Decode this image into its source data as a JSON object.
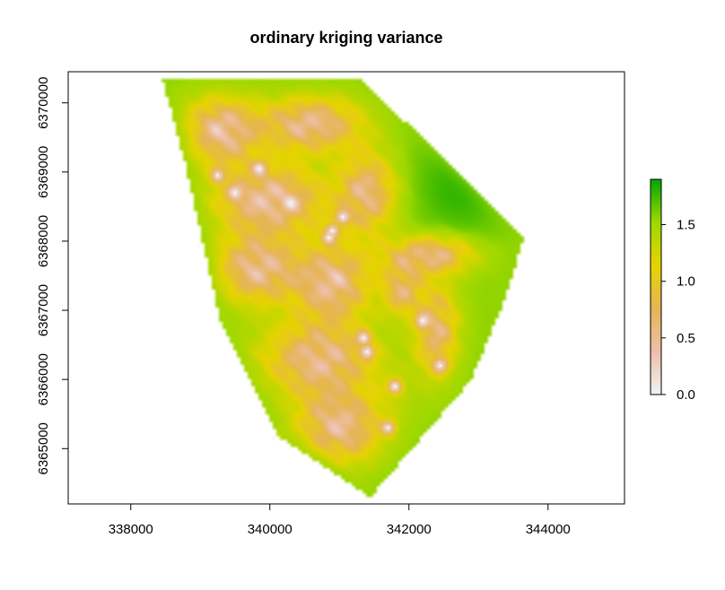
{
  "chart_data": {
    "type": "heatmap",
    "title": "ordinary kriging variance",
    "xlabel": "",
    "ylabel": "",
    "xlim": [
      337100,
      345100
    ],
    "ylim": [
      6364200,
      6370450
    ],
    "x_ticks": [
      338000,
      340000,
      342000,
      344000
    ],
    "x_tick_labels": [
      "338000",
      "340000",
      "342000",
      "344000"
    ],
    "y_ticks": [
      6365000,
      6366000,
      6367000,
      6368000,
      6369000,
      6370000
    ],
    "y_tick_labels": [
      "6365000",
      "6366000",
      "6367000",
      "6368000",
      "6369000",
      "6370000"
    ],
    "grid": false,
    "legend": {
      "placement": "right",
      "range": [
        0.0,
        1.9
      ],
      "ticks": [
        0.0,
        0.5,
        1.0,
        1.5
      ],
      "tick_labels": [
        "0.0",
        "0.5",
        "1.0",
        "1.5"
      ],
      "colors": [
        "#F2F2F2",
        "#EDBFAA",
        "#E6B554",
        "#E6D400",
        "#9FD800",
        "#00A600"
      ]
    },
    "domain_boundary": [
      [
        338450,
        6370370
      ],
      [
        339900,
        6370370
      ],
      [
        341300,
        6370370
      ],
      [
        343650,
        6368050
      ],
      [
        343400,
        6367200
      ],
      [
        342900,
        6366000
      ],
      [
        341450,
        6364300
      ],
      [
        340100,
        6365200
      ],
      [
        339300,
        6366800
      ],
      [
        338800,
        6369050
      ],
      [
        338450,
        6370370
      ]
    ],
    "variance_field": {
      "background": 1.55,
      "low_zones": [
        {
          "x": 339300,
          "y": 6369600,
          "rx": 600,
          "ry": 550,
          "value": 0.45
        },
        {
          "x": 340600,
          "y": 6369700,
          "rx": 800,
          "ry": 450,
          "value": 0.5
        },
        {
          "x": 340000,
          "y": 6368600,
          "rx": 900,
          "ry": 550,
          "value": 0.45
        },
        {
          "x": 341400,
          "y": 6368700,
          "rx": 450,
          "ry": 650,
          "value": 0.6
        },
        {
          "x": 339800,
          "y": 6367600,
          "rx": 700,
          "ry": 550,
          "value": 0.5
        },
        {
          "x": 340900,
          "y": 6367400,
          "rx": 600,
          "ry": 600,
          "value": 0.5
        },
        {
          "x": 340700,
          "y": 6366300,
          "rx": 900,
          "ry": 600,
          "value": 0.55
        },
        {
          "x": 341000,
          "y": 6365300,
          "rx": 700,
          "ry": 600,
          "value": 0.5
        },
        {
          "x": 342300,
          "y": 6367800,
          "rx": 700,
          "ry": 300,
          "value": 0.6
        },
        {
          "x": 342400,
          "y": 6366700,
          "rx": 350,
          "ry": 750,
          "value": 0.65
        },
        {
          "x": 341900,
          "y": 6367300,
          "rx": 300,
          "ry": 400,
          "value": 0.7
        }
      ],
      "high_zones": [
        {
          "x": 342800,
          "y": 6368900,
          "rx": 750,
          "ry": 900,
          "value": 1.85
        },
        {
          "x": 341800,
          "y": 6365800,
          "rx": 350,
          "ry": 450,
          "value": 1.45
        },
        {
          "x": 339600,
          "y": 6366200,
          "rx": 500,
          "ry": 500,
          "value": 1.5
        }
      ]
    },
    "observation_points": [
      [
        339250,
        6368950
      ],
      [
        339850,
        6369050
      ],
      [
        339500,
        6368700
      ],
      [
        340300,
        6368550
      ],
      [
        341050,
        6368350
      ],
      [
        340900,
        6368150
      ],
      [
        341350,
        6366600
      ],
      [
        341400,
        6366400
      ],
      [
        342200,
        6366850
      ],
      [
        342450,
        6366200
      ],
      [
        341800,
        6365900
      ],
      [
        341700,
        6365300
      ],
      [
        340050,
        6365150
      ],
      [
        340850,
        6368050
      ]
    ]
  }
}
